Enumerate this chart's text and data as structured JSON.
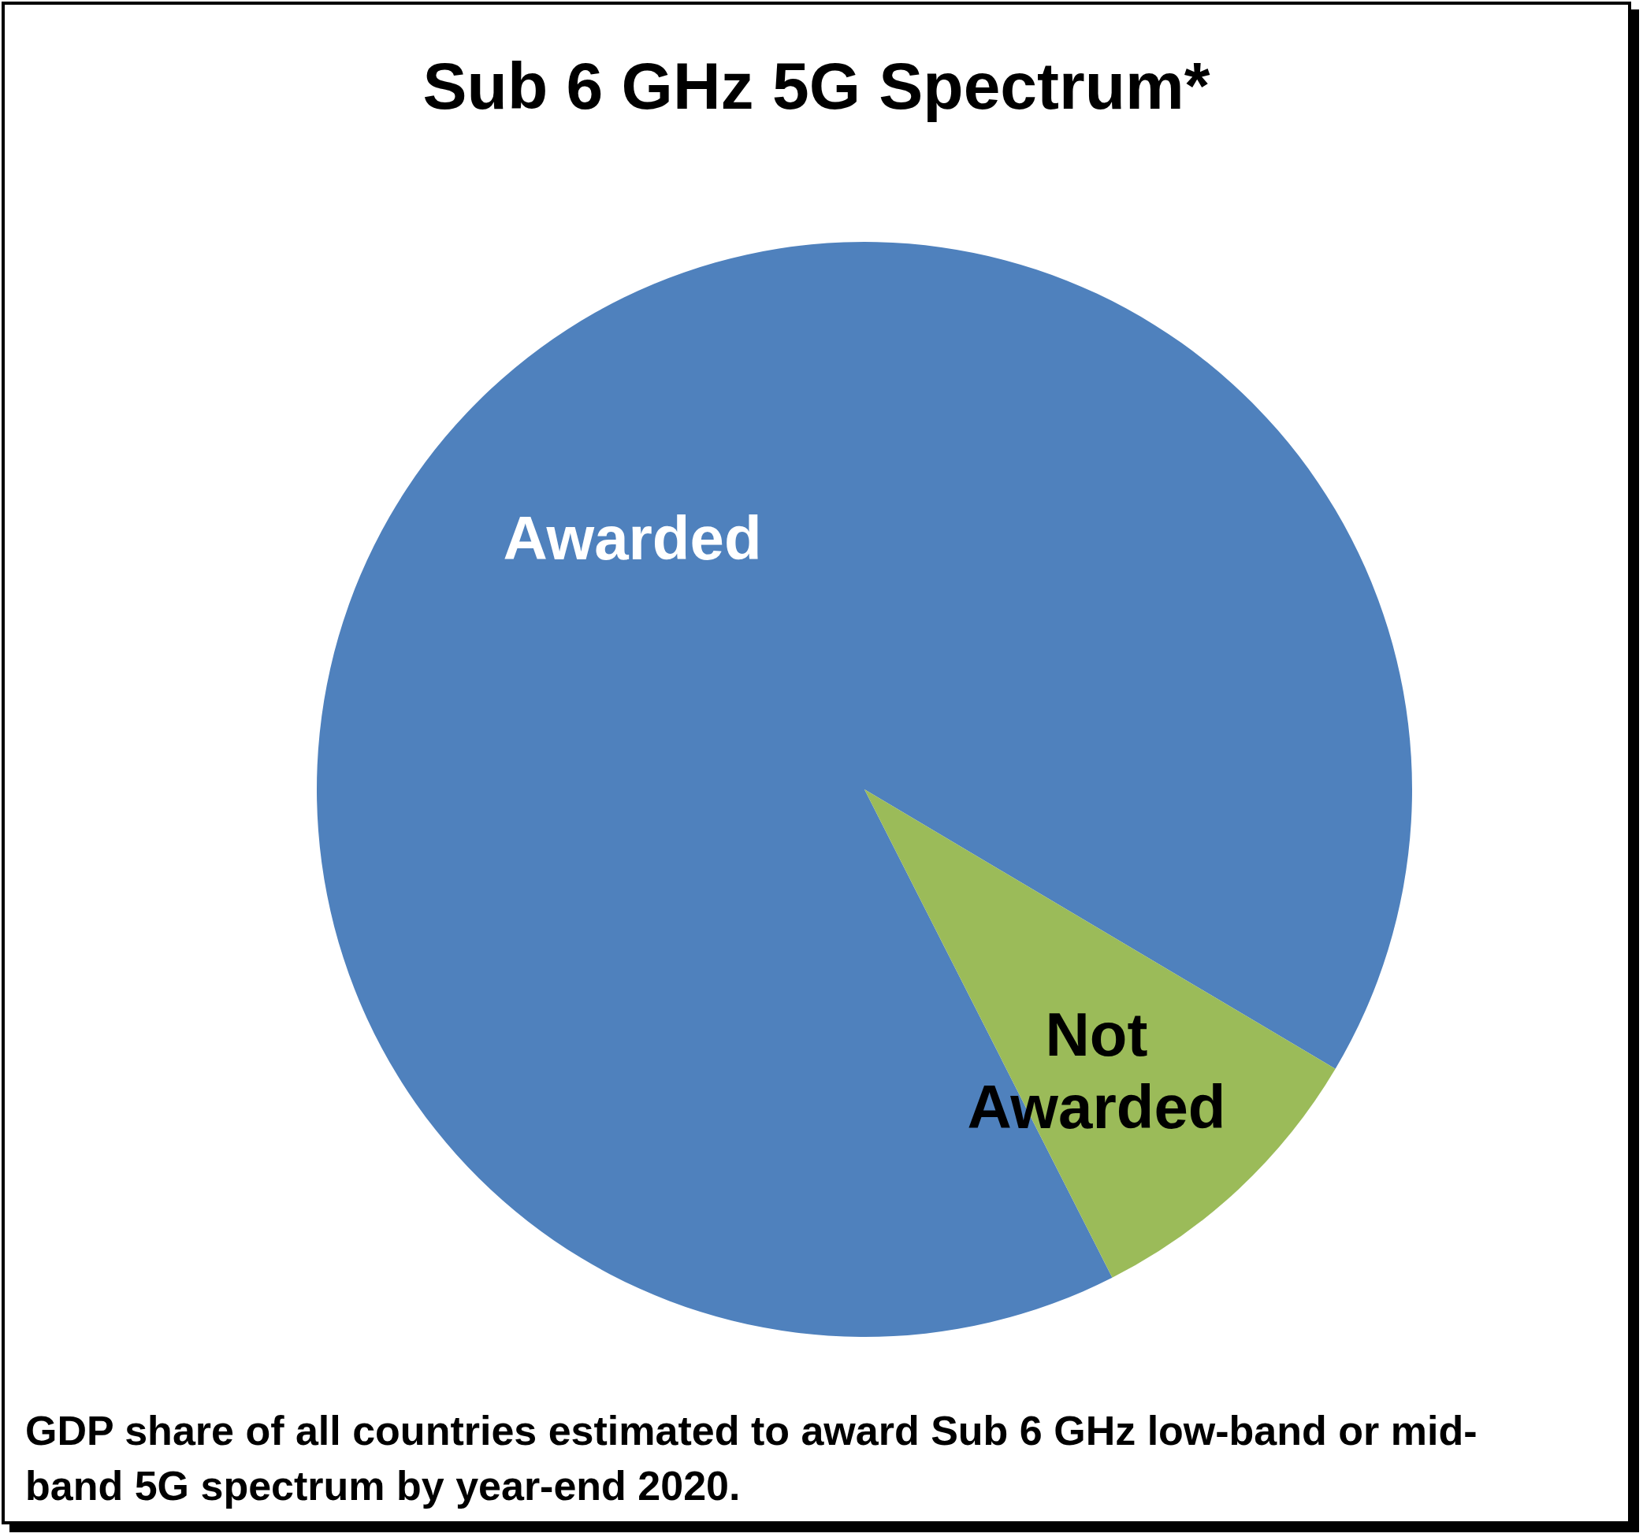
{
  "chart_data": {
    "type": "pie",
    "title": "Sub 6 GHz 5G Spectrum*",
    "categories": [
      "Awarded",
      "Not Awarded"
    ],
    "values": [
      91,
      9
    ],
    "colors": [
      "#4f81bd",
      "#9bbb59"
    ],
    "annotations": [
      "GDP share of all countries estimated to award Sub 6 GHz low-band or mid-band 5G spectrum by year-end 2020."
    ]
  }
}
